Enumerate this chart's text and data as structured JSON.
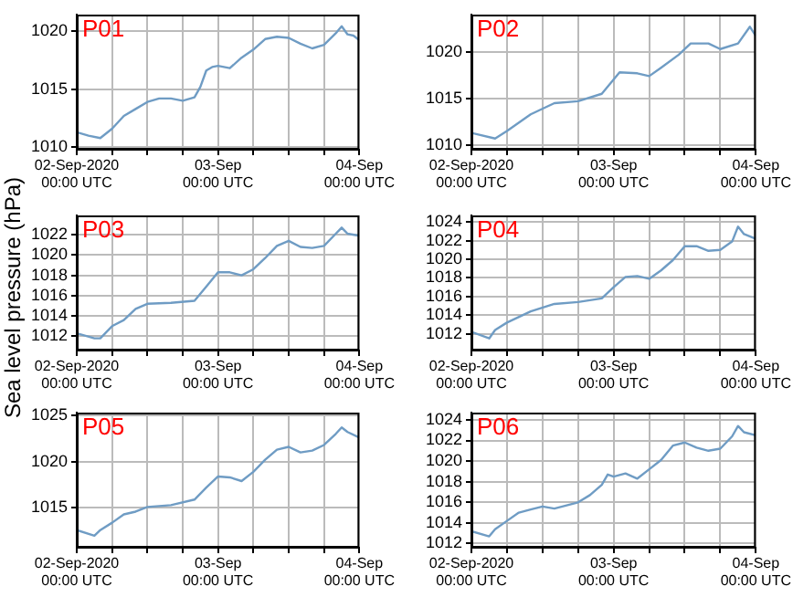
{
  "chart_data": [
    {
      "type": "line",
      "title": "P01",
      "color": "#6f9cc4",
      "marker": "none",
      "grid": true,
      "xlim": [
        "2020-09-02T00:00",
        "2020-09-04T00:00"
      ],
      "xticks": [
        {
          "value": "2020-09-02T00:00",
          "label": "02-Sep-2020\n00:00 UTC"
        },
        {
          "value": "2020-09-02T06:00",
          "label": null
        },
        {
          "value": "2020-09-02T12:00",
          "label": null
        },
        {
          "value": "2020-09-02T18:00",
          "label": null
        },
        {
          "value": "2020-09-03T00:00",
          "label": "03-Sep\n00:00 UTC"
        },
        {
          "value": "2020-09-03T06:00",
          "label": null
        },
        {
          "value": "2020-09-03T12:00",
          "label": null
        },
        {
          "value": "2020-09-03T18:00",
          "label": null
        },
        {
          "value": "2020-09-04T00:00",
          "label": "04-Sep\n00:00 UTC"
        }
      ],
      "ylim": [
        1009.8,
        1021.4
      ],
      "yticks": [
        1010,
        1015,
        1020
      ],
      "x": [
        "2020-09-02T00:00",
        "2020-09-02T02:00",
        "2020-09-02T04:00",
        "2020-09-02T06:00",
        "2020-09-02T08:00",
        "2020-09-02T10:00",
        "2020-09-02T12:00",
        "2020-09-02T14:00",
        "2020-09-02T16:00",
        "2020-09-02T18:00",
        "2020-09-02T20:00",
        "2020-09-02T21:00",
        "2020-09-02T22:00",
        "2020-09-02T23:00",
        "2020-09-03T00:00",
        "2020-09-03T02:00",
        "2020-09-03T04:00",
        "2020-09-03T06:00",
        "2020-09-03T08:00",
        "2020-09-03T10:00",
        "2020-09-03T12:00",
        "2020-09-03T14:00",
        "2020-09-03T16:00",
        "2020-09-03T18:00",
        "2020-09-03T20:00",
        "2020-09-03T21:00",
        "2020-09-03T22:00",
        "2020-09-03T23:00",
        "2020-09-04T00:00"
      ],
      "values": [
        1011.3,
        1011.0,
        1010.8,
        1011.6,
        1012.7,
        1013.3,
        1013.9,
        1014.2,
        1014.2,
        1014.0,
        1014.3,
        1015.2,
        1016.6,
        1016.9,
        1017.0,
        1016.8,
        1017.7,
        1018.4,
        1019.3,
        1019.5,
        1019.4,
        1018.9,
        1018.5,
        1018.8,
        1019.8,
        1020.4,
        1019.7,
        1019.6,
        1019.2
      ]
    },
    {
      "type": "line",
      "title": "P02",
      "color": "#6f9cc4",
      "marker": "none",
      "grid": true,
      "xlim": [
        "2020-09-02T00:00",
        "2020-09-04T00:00"
      ],
      "xticks": [
        {
          "value": "2020-09-02T00:00",
          "label": "02-Sep-2020\n00:00 UTC"
        },
        {
          "value": "2020-09-02T06:00",
          "label": null
        },
        {
          "value": "2020-09-02T12:00",
          "label": null
        },
        {
          "value": "2020-09-02T18:00",
          "label": null
        },
        {
          "value": "2020-09-03T00:00",
          "label": "03-Sep\n00:00 UTC"
        },
        {
          "value": "2020-09-03T06:00",
          "label": null
        },
        {
          "value": "2020-09-03T12:00",
          "label": null
        },
        {
          "value": "2020-09-03T18:00",
          "label": null
        },
        {
          "value": "2020-09-04T00:00",
          "label": "04-Sep\n00:00 UTC"
        }
      ],
      "ylim": [
        1009.5,
        1024
      ],
      "yticks": [
        1010,
        1015,
        1020
      ],
      "x": [
        "2020-09-02T00:00",
        "2020-09-02T04:00",
        "2020-09-02T06:00",
        "2020-09-02T10:00",
        "2020-09-02T14:00",
        "2020-09-02T18:00",
        "2020-09-02T22:00",
        "2020-09-03T01:00",
        "2020-09-03T04:00",
        "2020-09-03T06:00",
        "2020-09-03T08:00",
        "2020-09-03T11:00",
        "2020-09-03T13:00",
        "2020-09-03T16:00",
        "2020-09-03T18:00",
        "2020-09-03T21:00",
        "2020-09-03T23:00",
        "2020-09-04T00:00"
      ],
      "values": [
        1011.3,
        1010.7,
        1011.5,
        1013.3,
        1014.5,
        1014.7,
        1015.5,
        1017.8,
        1017.7,
        1017.4,
        1018.3,
        1019.7,
        1020.9,
        1020.9,
        1020.3,
        1020.9,
        1022.7,
        1021.7
      ]
    },
    {
      "type": "line",
      "title": "P03",
      "ylabel": "Sea level pressure (hPa)",
      "color": "#6f9cc4",
      "marker": "none",
      "grid": true,
      "xlim": [
        "2020-09-02T00:00",
        "2020-09-04T00:00"
      ],
      "xticks": [
        {
          "value": "2020-09-02T00:00",
          "label": "02-Sep-2020\n00:00 UTC"
        },
        {
          "value": "2020-09-02T06:00",
          "label": null
        },
        {
          "value": "2020-09-02T12:00",
          "label": null
        },
        {
          "value": "2020-09-02T18:00",
          "label": null
        },
        {
          "value": "2020-09-03T00:00",
          "label": "03-Sep\n00:00 UTC"
        },
        {
          "value": "2020-09-03T06:00",
          "label": null
        },
        {
          "value": "2020-09-03T12:00",
          "label": null
        },
        {
          "value": "2020-09-03T18:00",
          "label": null
        },
        {
          "value": "2020-09-04T00:00",
          "label": "04-Sep\n00:00 UTC"
        }
      ],
      "ylim": [
        1010.6,
        1023.9
      ],
      "yticks": [
        1012,
        1014,
        1016,
        1018,
        1020,
        1022
      ],
      "x": [
        "2020-09-02T00:00",
        "2020-09-02T03:00",
        "2020-09-02T04:00",
        "2020-09-02T06:00",
        "2020-09-02T08:00",
        "2020-09-02T10:00",
        "2020-09-02T12:00",
        "2020-09-02T16:00",
        "2020-09-02T20:00",
        "2020-09-02T22:00",
        "2020-09-03T00:00",
        "2020-09-03T02:00",
        "2020-09-03T04:00",
        "2020-09-03T06:00",
        "2020-09-03T08:00",
        "2020-09-03T10:00",
        "2020-09-03T12:00",
        "2020-09-03T14:00",
        "2020-09-03T16:00",
        "2020-09-03T18:00",
        "2020-09-03T20:00",
        "2020-09-03T21:00",
        "2020-09-03T22:00",
        "2020-09-04T00:00"
      ],
      "values": [
        1012.3,
        1011.8,
        1011.8,
        1013.0,
        1013.6,
        1014.7,
        1015.2,
        1015.3,
        1015.5,
        1016.9,
        1018.3,
        1018.3,
        1018.0,
        1018.6,
        1019.7,
        1020.9,
        1021.4,
        1020.8,
        1020.7,
        1020.9,
        1022.1,
        1022.7,
        1022.1,
        1021.9
      ]
    },
    {
      "type": "line",
      "title": "P04",
      "color": "#6f9cc4",
      "marker": "none",
      "grid": true,
      "xlim": [
        "2020-09-02T00:00",
        "2020-09-04T00:00"
      ],
      "xticks": [
        {
          "value": "2020-09-02T00:00",
          "label": "02-Sep-2020\n00:00 UTC"
        },
        {
          "value": "2020-09-02T06:00",
          "label": null
        },
        {
          "value": "2020-09-02T12:00",
          "label": null
        },
        {
          "value": "2020-09-02T18:00",
          "label": null
        },
        {
          "value": "2020-09-03T00:00",
          "label": "03-Sep\n00:00 UTC"
        },
        {
          "value": "2020-09-03T06:00",
          "label": null
        },
        {
          "value": "2020-09-03T12:00",
          "label": null
        },
        {
          "value": "2020-09-03T18:00",
          "label": null
        },
        {
          "value": "2020-09-04T00:00",
          "label": "04-Sep\n00:00 UTC"
        }
      ],
      "ylim": [
        1010.2,
        1024.7
      ],
      "yticks": [
        1012,
        1014,
        1016,
        1018,
        1020,
        1022,
        1024
      ],
      "x": [
        "2020-09-02T00:00",
        "2020-09-02T03:00",
        "2020-09-02T04:00",
        "2020-09-02T06:00",
        "2020-09-02T10:00",
        "2020-09-02T14:00",
        "2020-09-02T18:00",
        "2020-09-02T22:00",
        "2020-09-03T00:00",
        "2020-09-03T02:00",
        "2020-09-03T04:00",
        "2020-09-03T06:00",
        "2020-09-03T08:00",
        "2020-09-03T10:00",
        "2020-09-03T12:00",
        "2020-09-03T14:00",
        "2020-09-03T16:00",
        "2020-09-03T18:00",
        "2020-09-03T20:00",
        "2020-09-03T21:00",
        "2020-09-03T22:00",
        "2020-09-04T00:00"
      ],
      "values": [
        1012.2,
        1011.5,
        1012.4,
        1013.2,
        1014.4,
        1015.2,
        1015.4,
        1015.8,
        1017.0,
        1018.1,
        1018.2,
        1017.9,
        1018.8,
        1019.9,
        1021.4,
        1021.4,
        1020.9,
        1021.0,
        1021.9,
        1023.5,
        1022.7,
        1022.2
      ]
    },
    {
      "type": "line",
      "title": "P05",
      "color": "#6f9cc4",
      "marker": "none",
      "grid": true,
      "xlim": [
        "2020-09-02T00:00",
        "2020-09-04T00:00"
      ],
      "xticks": [
        {
          "value": "2020-09-02T00:00",
          "label": "02-Sep-2020\n00:00 UTC"
        },
        {
          "value": "2020-09-02T06:00",
          "label": null
        },
        {
          "value": "2020-09-02T12:00",
          "label": null
        },
        {
          "value": "2020-09-02T18:00",
          "label": null
        },
        {
          "value": "2020-09-03T00:00",
          "label": "03-Sep\n00:00 UTC"
        },
        {
          "value": "2020-09-03T06:00",
          "label": null
        },
        {
          "value": "2020-09-03T12:00",
          "label": null
        },
        {
          "value": "2020-09-03T18:00",
          "label": null
        },
        {
          "value": "2020-09-04T00:00",
          "label": "04-Sep\n00:00 UTC"
        }
      ],
      "ylim": [
        1010.7,
        1025.3
      ],
      "yticks": [
        1015,
        1020,
        1025
      ],
      "x": [
        "2020-09-02T00:00",
        "2020-09-02T03:00",
        "2020-09-02T04:00",
        "2020-09-02T06:00",
        "2020-09-02T08:00",
        "2020-09-02T10:00",
        "2020-09-02T12:00",
        "2020-09-02T16:00",
        "2020-09-02T20:00",
        "2020-09-02T22:00",
        "2020-09-03T00:00",
        "2020-09-03T02:00",
        "2020-09-03T04:00",
        "2020-09-03T06:00",
        "2020-09-03T08:00",
        "2020-09-03T10:00",
        "2020-09-03T12:00",
        "2020-09-03T14:00",
        "2020-09-03T16:00",
        "2020-09-03T18:00",
        "2020-09-03T20:00",
        "2020-09-03T21:00",
        "2020-09-03T22:00",
        "2020-09-04T00:00"
      ],
      "values": [
        1012.6,
        1012.0,
        1012.6,
        1013.4,
        1014.3,
        1014.6,
        1015.1,
        1015.3,
        1015.9,
        1017.2,
        1018.4,
        1018.3,
        1017.9,
        1018.9,
        1020.2,
        1021.3,
        1021.6,
        1021.0,
        1021.2,
        1021.8,
        1023.0,
        1023.7,
        1023.2,
        1022.6
      ]
    },
    {
      "type": "line",
      "title": "P06",
      "color": "#6f9cc4",
      "marker": "none",
      "grid": true,
      "xlim": [
        "2020-09-02T00:00",
        "2020-09-04T00:00"
      ],
      "xticks": [
        {
          "value": "2020-09-02T00:00",
          "label": "02-Sep-2020\n00:00 UTC"
        },
        {
          "value": "2020-09-02T06:00",
          "label": null
        },
        {
          "value": "2020-09-02T12:00",
          "label": null
        },
        {
          "value": "2020-09-02T18:00",
          "label": null
        },
        {
          "value": "2020-09-03T00:00",
          "label": "03-Sep\n00:00 UTC"
        },
        {
          "value": "2020-09-03T06:00",
          "label": null
        },
        {
          "value": "2020-09-03T12:00",
          "label": null
        },
        {
          "value": "2020-09-03T18:00",
          "label": null
        },
        {
          "value": "2020-09-04T00:00",
          "label": "04-Sep\n00:00 UTC"
        }
      ],
      "ylim": [
        1011.6,
        1024.7
      ],
      "yticks": [
        1012,
        1014,
        1016,
        1018,
        1020,
        1022,
        1024
      ],
      "x": [
        "2020-09-02T00:00",
        "2020-09-02T03:00",
        "2020-09-02T04:00",
        "2020-09-02T06:00",
        "2020-09-02T08:00",
        "2020-09-02T10:00",
        "2020-09-02T12:00",
        "2020-09-02T14:00",
        "2020-09-02T18:00",
        "2020-09-02T20:00",
        "2020-09-02T22:00",
        "2020-09-02T23:00",
        "2020-09-03T00:00",
        "2020-09-03T02:00",
        "2020-09-03T04:00",
        "2020-09-03T06:00",
        "2020-09-03T08:00",
        "2020-09-03T10:00",
        "2020-09-03T12:00",
        "2020-09-03T14:00",
        "2020-09-03T16:00",
        "2020-09-03T18:00",
        "2020-09-03T20:00",
        "2020-09-03T21:00",
        "2020-09-03T22:00",
        "2020-09-04T00:00"
      ],
      "values": [
        1013.2,
        1012.7,
        1013.4,
        1014.2,
        1015.0,
        1015.3,
        1015.6,
        1015.4,
        1016.0,
        1016.7,
        1017.7,
        1018.7,
        1018.5,
        1018.8,
        1018.3,
        1019.2,
        1020.1,
        1021.5,
        1021.8,
        1021.3,
        1021.0,
        1021.2,
        1022.4,
        1023.4,
        1022.8,
        1022.5
      ]
    }
  ]
}
